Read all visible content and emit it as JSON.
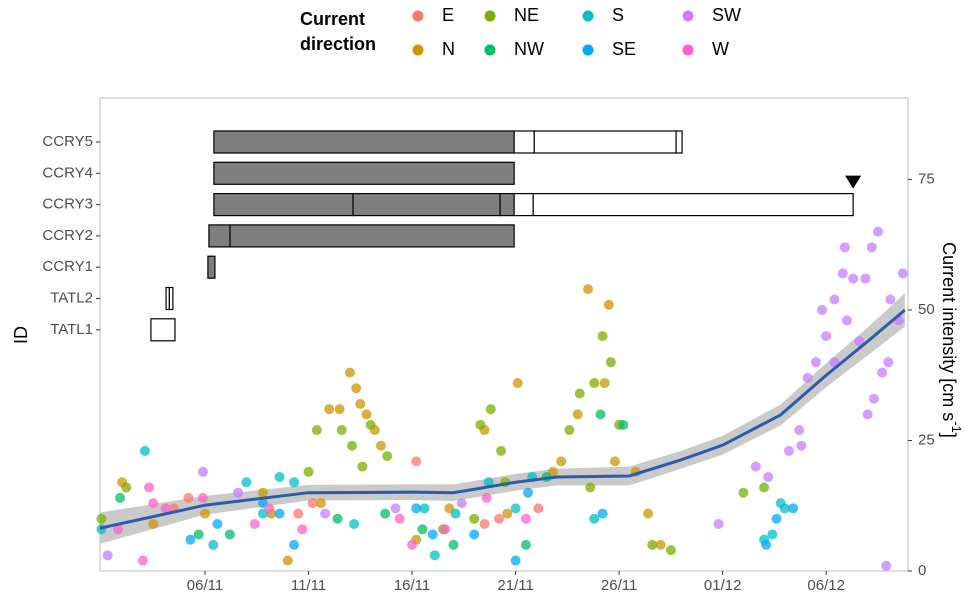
{
  "chart_data": {
    "type": "scatter",
    "legend_title": [
      "Current",
      "direction"
    ],
    "y_label": [
      "Current intensity [cm s",
      "-1",
      "]"
    ],
    "id_label": "ID",
    "xlim": [
      0.93,
      39.95
    ],
    "ylim": [
      0,
      90.6
    ],
    "xticks": [
      {
        "value": 6,
        "label": "06/11"
      },
      {
        "value": 11,
        "label": "11/11"
      },
      {
        "value": 16,
        "label": "16/11"
      },
      {
        "value": 21,
        "label": "21/11"
      },
      {
        "value": 26,
        "label": "26/11"
      },
      {
        "value": 31,
        "label": "01/12"
      },
      {
        "value": 36,
        "label": "06/12"
      }
    ],
    "yticks": [
      0,
      25,
      50,
      75
    ],
    "series": [
      {
        "name": "E",
        "color": "#F8766D",
        "x": [
          4.5,
          5.2,
          11.2,
          16.2,
          19.5,
          20.2,
          22.1,
          10.5
        ],
        "y": [
          12,
          14,
          13,
          21,
          9,
          10,
          12,
          11
        ]
      },
      {
        "name": "N",
        "color": "#CD9600",
        "x": [
          2.0,
          3.5,
          6.0,
          9.2,
          12.0,
          12.5,
          13.0,
          13.3,
          13.5,
          13.8,
          14.2,
          14.5,
          16.2,
          17.8,
          19.5,
          20.6,
          21.1,
          22.8,
          23.2,
          24.0,
          24.5,
          25.3,
          25.5,
          25.8,
          26.8,
          27.4,
          28.0,
          10.0,
          11.6,
          8.8
        ],
        "y": [
          17,
          9,
          11,
          11,
          31,
          31,
          38,
          35,
          32,
          30,
          27,
          24,
          6,
          12,
          27,
          11,
          36,
          19,
          21,
          30,
          54,
          36,
          51,
          21,
          19,
          11,
          5,
          2,
          13,
          15
        ]
      },
      {
        "name": "NE",
        "color": "#7CAE00",
        "x": [
          1.0,
          2.2,
          11.0,
          11.4,
          12.6,
          13.1,
          13.6,
          14.0,
          14.8,
          19.3,
          19.8,
          20.3,
          20.5,
          23.6,
          24.1,
          24.8,
          25.2,
          25.6,
          26.0,
          24.6,
          19.0,
          17.5,
          27.6,
          28.5,
          32.0,
          33.0
        ],
        "y": [
          10,
          16,
          19,
          27,
          27,
          24,
          20,
          28,
          22,
          28,
          31,
          23,
          17,
          27,
          34,
          36,
          45,
          40,
          28,
          16,
          10,
          8,
          5,
          4,
          15,
          16
        ]
      },
      {
        "name": "NW",
        "color": "#00BE67",
        "x": [
          1.9,
          5.7,
          12.4,
          14.7,
          16.5,
          18.0,
          21.5,
          25.1,
          26.2,
          7.2,
          22.5
        ],
        "y": [
          14,
          7,
          10,
          11,
          8,
          5,
          5,
          30,
          28,
          7,
          18
        ]
      },
      {
        "name": "S",
        "color": "#00BFC4",
        "x": [
          1.0,
          3.1,
          8.8,
          9.6,
          10.3,
          13.2,
          16.6,
          18.1,
          19.7,
          21.0,
          21.8,
          33.0,
          33.4,
          33.8,
          34.0,
          8.0,
          6.4,
          17.1,
          24.8
        ],
        "y": [
          8,
          23,
          11,
          18,
          17,
          9,
          12,
          11,
          17,
          12,
          18,
          6,
          7,
          13,
          12,
          17,
          5,
          3,
          10
        ]
      },
      {
        "name": "SE",
        "color": "#00A9FF",
        "x": [
          5.3,
          6.6,
          8.8,
          9.6,
          10.3,
          16.2,
          17.0,
          19.0,
          21.0,
          21.6,
          33.1,
          33.6,
          34.4,
          25.2
        ],
        "y": [
          6,
          9,
          13,
          11,
          5,
          12,
          7,
          7,
          2,
          15,
          5,
          10,
          12,
          11
        ]
      },
      {
        "name": "SW",
        "color": "#C77CFF",
        "x": [
          1.3,
          5.9,
          7.6,
          11.8,
          15.2,
          18.4,
          30.8,
          32.6,
          33.2,
          34.2,
          34.8,
          35.1,
          35.5,
          35.8,
          36.0,
          36.4,
          36.8,
          37.0,
          37.3,
          37.6,
          37.9,
          38.2,
          38.3,
          38.7,
          39.0,
          39.1,
          39.5,
          39.7,
          38.5,
          38.9,
          36.9,
          34.7,
          36.4,
          38.0
        ],
        "y": [
          3,
          19,
          15,
          11,
          12,
          13,
          9,
          20,
          18,
          23,
          24,
          37,
          40,
          50,
          45,
          52,
          57,
          48,
          56,
          44,
          56,
          62,
          33,
          38,
          40,
          52,
          48,
          57,
          65,
          1,
          62,
          27,
          40,
          30
        ]
      },
      {
        "name": "W",
        "color": "#FF61CC",
        "x": [
          1.8,
          3.3,
          3.5,
          4.1,
          5.9,
          9.1,
          10.7,
          15.4,
          16.0,
          17.6,
          19.6,
          21.5,
          3.0,
          8.4
        ],
        "y": [
          8,
          16,
          13,
          12,
          14,
          12,
          8,
          10,
          5,
          8,
          14,
          10,
          2,
          9
        ]
      }
    ],
    "smooth": {
      "color": "#2a5caa",
      "band_color": "#bdbdbd",
      "x": [
        0.93,
        6,
        11,
        16,
        18,
        21,
        23,
        26.5,
        29,
        31,
        33.8,
        36,
        38.1,
        39.8
      ],
      "y": [
        8.2,
        12.6,
        15,
        15.1,
        15,
        17,
        18,
        18.2,
        21.3,
        24.1,
        29.9,
        37.5,
        44.3,
        50
      ],
      "lower": [
        5.2,
        10.8,
        13.5,
        13.6,
        13.4,
        15.4,
        16.4,
        16.4,
        19.6,
        22.3,
        27.9,
        35.2,
        41.6,
        46.8
      ],
      "upper": [
        11.2,
        14.4,
        16.5,
        16.6,
        16.6,
        18.6,
        19.6,
        20,
        23,
        25.9,
        31.9,
        39.8,
        47,
        53.2
      ]
    },
    "tracks": [
      {
        "name": "CCRY5",
        "segments": [
          {
            "start": 6.43,
            "end": 20.93,
            "color": "#7f7f7f"
          },
          {
            "start": 20.93,
            "end": 21.9,
            "color": "#ffffff"
          },
          {
            "start": 21.9,
            "end": 28.75,
            "color": "#ffffff"
          },
          {
            "start": 28.75,
            "end": 29.04,
            "color": "#ffffff"
          }
        ]
      },
      {
        "name": "CCRY4",
        "segments": [
          {
            "start": 6.43,
            "end": 20.93,
            "color": "#7f7f7f"
          }
        ]
      },
      {
        "name": "CCRY3",
        "end_marker": true,
        "segments": [
          {
            "start": 6.43,
            "end": 13.15,
            "color": "#7f7f7f"
          },
          {
            "start": 13.15,
            "end": 20.25,
            "color": "#7f7f7f"
          },
          {
            "start": 20.25,
            "end": 20.93,
            "color": "#7f7f7f"
          },
          {
            "start": 20.93,
            "end": 21.85,
            "color": "#ffffff"
          },
          {
            "start": 21.85,
            "end": 37.3,
            "color": "#ffffff"
          }
        ]
      },
      {
        "name": "CCRY2",
        "segments": [
          {
            "start": 6.19,
            "end": 7.21,
            "color": "#7f7f7f"
          },
          {
            "start": 7.21,
            "end": 20.93,
            "color": "#7f7f7f"
          }
        ]
      },
      {
        "name": "CCRY1",
        "segments": [
          {
            "start": 6.14,
            "end": 6.48,
            "color": "#7f7f7f"
          }
        ]
      },
      {
        "name": "TATL2",
        "segments": [
          {
            "start": 4.12,
            "end": 4.28,
            "color": "#ffffff"
          },
          {
            "start": 4.28,
            "end": 4.45,
            "color": "#ffffff"
          }
        ]
      },
      {
        "name": "TATL1",
        "segments": [
          {
            "start": 3.39,
            "end": 4.55,
            "color": "#ffffff"
          }
        ]
      }
    ]
  }
}
